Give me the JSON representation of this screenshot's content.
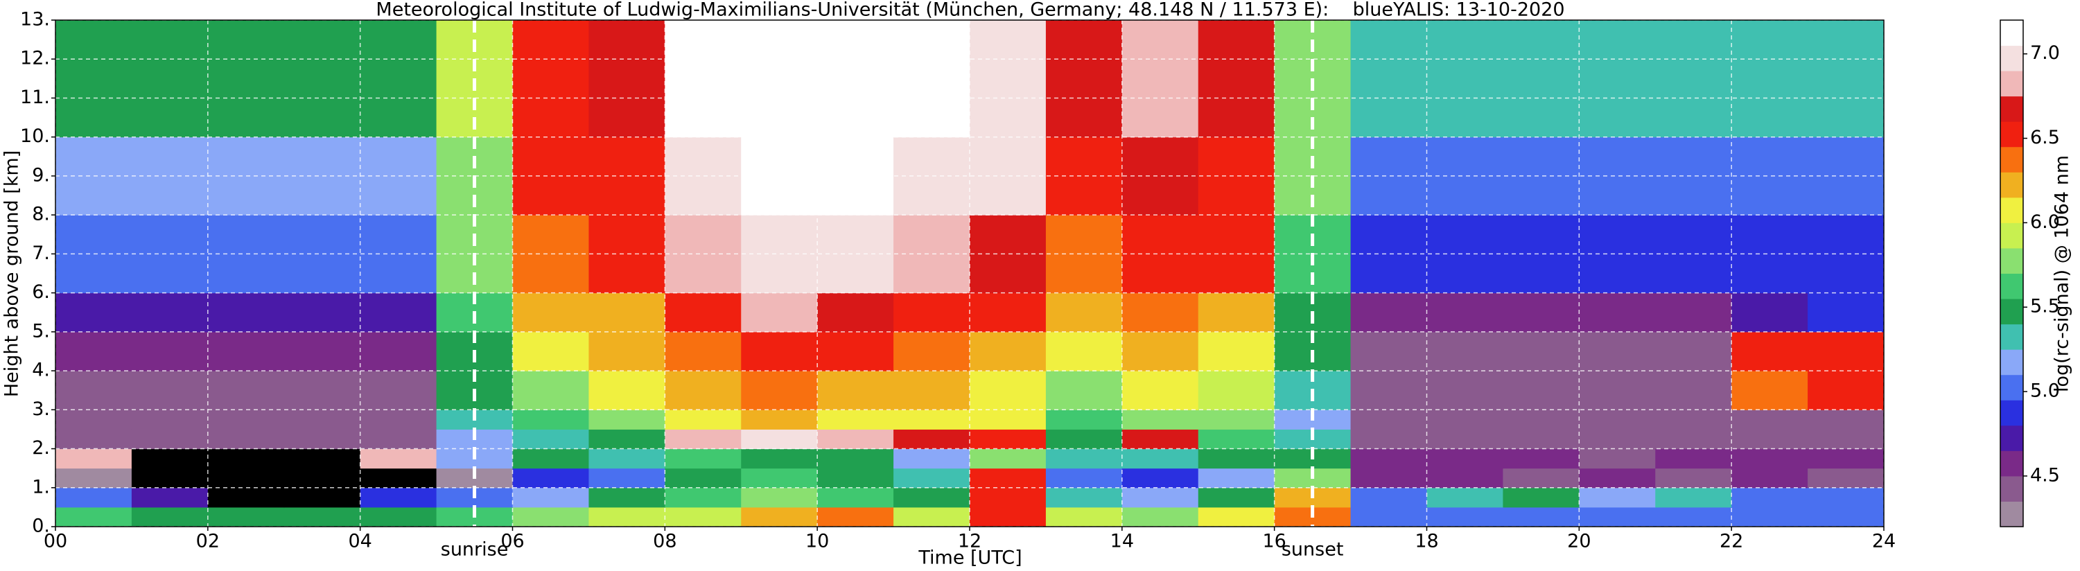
{
  "chart_data": {
    "type": "heatmap",
    "title": "Meteorological Institute of Ludwig-Maximilians-Universität (München, Germany; 48.148 N / 11.573 E):    blueYALIS: 13-10-2020",
    "xlabel": "Time [UTC]",
    "ylabel": "Height above ground [km]",
    "colorbar_label": "log(rc-signal) @ 1064 nm",
    "xlim": [
      0,
      24
    ],
    "ylim": [
      0,
      13
    ],
    "xticks": [
      {
        "value": 0,
        "label": "00"
      },
      {
        "value": 2,
        "label": "02"
      },
      {
        "value": 4,
        "label": "04"
      },
      {
        "value": 6,
        "label": "06"
      },
      {
        "value": 8,
        "label": "08"
      },
      10,
      12,
      14,
      16,
      18,
      20,
      22,
      24
    ],
    "yticks": [
      {
        "value": 0,
        "label": "0."
      },
      {
        "value": 1,
        "label": "1."
      },
      {
        "value": 2,
        "label": "2."
      },
      {
        "value": 3,
        "label": "3."
      },
      {
        "value": 4,
        "label": "4."
      },
      {
        "value": 5,
        "label": "5."
      },
      {
        "value": 6,
        "label": "6."
      },
      {
        "value": 7,
        "label": "7."
      },
      {
        "value": 8,
        "label": "8."
      },
      {
        "value": 9,
        "label": "9."
      },
      {
        "value": 10,
        "label": "10."
      },
      {
        "value": 11,
        "label": "11."
      },
      {
        "value": 12,
        "label": "12."
      },
      {
        "value": 13,
        "label": "13."
      }
    ],
    "grid": true,
    "clim": [
      4.2,
      7.2
    ],
    "cticks": [
      4.5,
      {
        "value": 5,
        "label": "5.0"
      },
      5.5,
      {
        "value": 6,
        "label": "6.0"
      },
      6.5,
      {
        "value": 7,
        "label": "7.0"
      }
    ],
    "colormap": [
      "#a08aa0",
      "#8a5a8e",
      "#7a2a88",
      "#4a1aa8",
      "#2a30e0",
      "#4a70f0",
      "#8aa8f8",
      "#40c0b0",
      "#20a050",
      "#40c870",
      "#8ae070",
      "#c8f050",
      "#f0f040",
      "#f0b020",
      "#f87010",
      "#f02010",
      "#d81818",
      "#f0b8b8",
      "#f4e0e0",
      "#ffffff"
    ],
    "under_color": "#000000",
    "x_edges": [
      0,
      1,
      2,
      3,
      4,
      5,
      6,
      7,
      8,
      9,
      10,
      11,
      12,
      13,
      14,
      15,
      16,
      17,
      18,
      19,
      20,
      21,
      22,
      23,
      24
    ],
    "y_edges": [
      0,
      0.5,
      1,
      1.5,
      2,
      2.5,
      3,
      4,
      5,
      6,
      8,
      10,
      13
    ],
    "z": [
      [
        5.6,
        5.5,
        5.4,
        5.4,
        5.5,
        5.6,
        5.8,
        5.9,
        5.9,
        6.2,
        6.4,
        5.9,
        6.5,
        5.9,
        5.8,
        6.0,
        6.4,
        5.1,
        5.0,
        5.1,
        5.0,
        5.1,
        5.0,
        5.0
      ],
      [
        5.0,
        4.8,
        4.1,
        4.1,
        4.9,
        5.0,
        5.2,
        5.4,
        5.6,
        5.7,
        5.6,
        5.4,
        6.6,
        5.3,
        5.2,
        5.4,
        6.2,
        5.0,
        5.3,
        5.5,
        5.2,
        5.3,
        5.1,
        5.0
      ],
      [
        4.2,
        4.0,
        4.0,
        4.0,
        4.1,
        4.2,
        4.9,
        5.1,
        5.5,
        5.6,
        5.4,
        5.3,
        6.5,
        5.0,
        4.9,
        5.2,
        5.8,
        4.6,
        4.6,
        4.5,
        4.6,
        4.5,
        4.6,
        4.5
      ],
      [
        6.8,
        4.1,
        4.0,
        4.0,
        6.8,
        5.2,
        5.5,
        5.3,
        5.6,
        5.5,
        5.4,
        5.2,
        5.8,
        5.3,
        5.3,
        5.4,
        5.5,
        4.6,
        4.6,
        4.6,
        4.5,
        4.6,
        4.6,
        4.6
      ],
      [
        4.5,
        4.4,
        4.4,
        4.4,
        4.5,
        5.2,
        5.3,
        5.4,
        6.8,
        6.9,
        6.8,
        6.7,
        6.6,
        5.4,
        6.7,
        5.6,
        5.3,
        4.5,
        4.5,
        4.5,
        4.5,
        4.5,
        4.5,
        4.5
      ],
      [
        4.5,
        4.5,
        4.5,
        4.5,
        4.5,
        5.3,
        5.6,
        5.8,
        6.0,
        6.2,
        6.1,
        6.0,
        6.0,
        5.6,
        5.8,
        5.7,
        5.2,
        4.4,
        4.4,
        4.4,
        4.4,
        4.4,
        4.4,
        4.4
      ],
      [
        4.5,
        4.5,
        4.5,
        4.5,
        4.5,
        5.4,
        5.8,
        6.0,
        6.2,
        6.4,
        6.3,
        6.2,
        6.1,
        5.8,
        6.0,
        5.9,
        5.3,
        4.4,
        4.5,
        4.4,
        4.4,
        4.4,
        6.4,
        6.5
      ],
      [
        4.6,
        4.6,
        4.6,
        4.6,
        4.6,
        5.5,
        6.0,
        6.2,
        6.4,
        6.6,
        6.5,
        6.4,
        6.3,
        6.0,
        6.2,
        6.1,
        5.4,
        4.5,
        4.5,
        4.5,
        4.5,
        4.5,
        6.6,
        6.6
      ],
      [
        4.8,
        4.8,
        4.8,
        4.8,
        4.8,
        5.6,
        6.2,
        6.3,
        6.6,
        6.8,
        6.7,
        6.6,
        6.5,
        6.2,
        6.4,
        6.3,
        5.5,
        4.6,
        4.6,
        4.6,
        4.6,
        4.6,
        4.8,
        4.9
      ],
      [
        5.0,
        5.0,
        5.0,
        5.0,
        5.0,
        5.7,
        6.4,
        6.5,
        6.8,
        7.0,
        6.9,
        6.8,
        6.7,
        6.4,
        6.6,
        6.5,
        5.6,
        4.9,
        4.9,
        4.9,
        4.9,
        4.9,
        4.9,
        4.9
      ],
      [
        5.2,
        5.2,
        5.2,
        5.2,
        5.2,
        5.8,
        6.5,
        6.6,
        7.0,
        7.1,
        7.1,
        7.0,
        6.9,
        6.6,
        6.7,
        6.6,
        5.7,
        5.1,
        5.1,
        5.1,
        5.1,
        5.1,
        5.1,
        5.1
      ],
      [
        5.4,
        5.4,
        5.4,
        5.4,
        5.4,
        5.9,
        6.6,
        6.7,
        7.1,
        7.2,
        7.2,
        7.1,
        7.0,
        6.7,
        6.8,
        6.7,
        5.8,
        5.3,
        5.3,
        5.3,
        5.3,
        5.3,
        5.3,
        5.3
      ]
    ],
    "annotations": [
      {
        "text": "sunrise",
        "x": 5.5
      },
      {
        "text": "sunset",
        "x": 16.5
      }
    ]
  }
}
